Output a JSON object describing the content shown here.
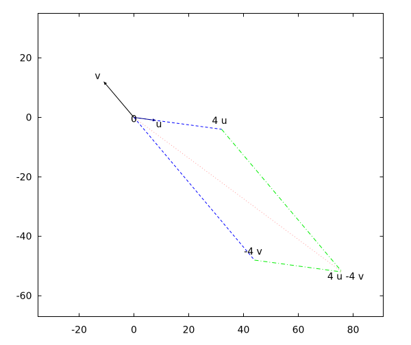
{
  "chart_data": {
    "type": "line",
    "title": "",
    "xlabel": "",
    "ylabel": "",
    "xlim": [
      -35,
      91
    ],
    "ylim": [
      -67,
      35
    ],
    "xticks": [
      -20,
      0,
      20,
      40,
      60,
      80
    ],
    "yticks": [
      20,
      0,
      -20,
      -40,
      -60
    ],
    "grid": false,
    "vectors": [
      {
        "name": "u",
        "from": [
          0,
          0
        ],
        "to": [
          8,
          -1
        ],
        "color": "#00008b",
        "dash": "solid"
      },
      {
        "name": "v",
        "from": [
          0,
          0
        ],
        "to": [
          -11,
          12
        ],
        "color": "#000000",
        "dash": "solid"
      }
    ],
    "segments": [
      {
        "name": "origin-to-4u",
        "from": [
          0,
          0
        ],
        "to": [
          32,
          -4
        ],
        "color": "#0000ff",
        "dash": "dashed"
      },
      {
        "name": "origin-to-minus-4v",
        "from": [
          0,
          0
        ],
        "to": [
          44,
          -48
        ],
        "color": "#0000ff",
        "dash": "dashed"
      },
      {
        "name": "4u-to-sum",
        "from": [
          32,
          -4
        ],
        "to": [
          76,
          -52
        ],
        "color": "#00ee00",
        "dash": "dashdot"
      },
      {
        "name": "minus-4v-to-sum",
        "from": [
          44,
          -48
        ],
        "to": [
          76,
          -52
        ],
        "color": "#00ee00",
        "dash": "dashdot"
      },
      {
        "name": "origin-to-sum",
        "from": [
          0,
          0
        ],
        "to": [
          76,
          -52
        ],
        "color": "#ff9999",
        "dash": "dotted"
      }
    ],
    "labels": [
      {
        "text": "0",
        "at": [
          0,
          0
        ],
        "anchor": "middle",
        "dx": 0,
        "dy": 7
      },
      {
        "text": "u",
        "at": [
          8,
          -1
        ],
        "anchor": "start",
        "dx": 0,
        "dy": 10
      },
      {
        "text": "v",
        "at": [
          -11,
          12
        ],
        "anchor": "middle",
        "dx": -9,
        "dy": -4
      },
      {
        "text": "4 u",
        "at": [
          32,
          -4
        ],
        "anchor": "middle",
        "dx": -3,
        "dy": -8
      },
      {
        "text": "-4 v",
        "at": [
          44,
          -48
        ],
        "anchor": "middle",
        "dx": -2,
        "dy": -8
      },
      {
        "text": "4 u -4 v",
        "at": [
          76,
          -52
        ],
        "anchor": "middle",
        "dx": 5,
        "dy": 11
      }
    ]
  }
}
